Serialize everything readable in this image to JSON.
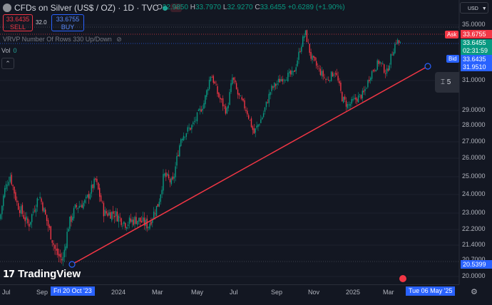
{
  "header": {
    "symbol_title": "CFDs on Silver (US$ / OZ) · 1D · TVC",
    "ohlc": {
      "o_label": "O",
      "o": "32.9850",
      "h_label": "H",
      "h": "33.7970",
      "l_label": "L",
      "l": "32.9270",
      "c_label": "C",
      "c": "33.6455",
      "change": "+0.6289 (+1.90%)"
    },
    "wave_icon": "≈"
  },
  "trade": {
    "sell_price": "33.6435",
    "sell_label": "SELL",
    "spread": "32.0",
    "buy_price": "33.6755",
    "buy_label": "BUY"
  },
  "indicators": {
    "vrvp_label": "VRVP Number Of Rows 330 Up/Down",
    "vol_label": "Vol",
    "vol_value": "0",
    "collapse_icon": "chevron-up-icon"
  },
  "currency": "USD",
  "price_axis": {
    "ticks": [
      "35.0000",
      "31.0000",
      "29.0000",
      "28.0000",
      "27.0000",
      "26.0000",
      "25.0000",
      "24.0000",
      "23.0000",
      "22.2000",
      "21.4000",
      "20.0000"
    ],
    "partial_tick": "20.7000",
    "ask_label": "Ask",
    "ask": "33.6755",
    "last": "33.6455",
    "countdown": "02:31:59",
    "bid_label": "Bid",
    "bid": "33.6435",
    "line_end": "31.9510",
    "line_start": "20.5399"
  },
  "time_axis": {
    "ticks": [
      "Jul",
      "Sep",
      "2024",
      "Mar",
      "May",
      "Jul",
      "Sep",
      "Nov",
      "2025",
      "Mar"
    ],
    "start_tag": "Fri 20 Oct '23",
    "end_tag": "Tue 06 May '25"
  },
  "tool_panel_text": "5",
  "brand": "TradingView",
  "colors": {
    "up": "#089981",
    "down": "#f23645",
    "trendline": "#f23645",
    "accent": "#2962ff",
    "background": "#131722"
  },
  "chart_data": {
    "type": "candlestick",
    "title": "CFDs on Silver (US$ / OZ) · 1D · TVC",
    "ylim": [
      19.9,
      35.4
    ],
    "x_range": [
      "2023-07",
      "2025-05"
    ],
    "close_path": [
      [
        0,
        22.7
      ],
      [
        6,
        24.2
      ],
      [
        14,
        25.1
      ],
      [
        24,
        23.5
      ],
      [
        40,
        22.4
      ],
      [
        55,
        24.0
      ],
      [
        65,
        22.7
      ],
      [
        78,
        21.1
      ],
      [
        88,
        20.7
      ],
      [
        96,
        22.4
      ],
      [
        106,
        23.3
      ],
      [
        120,
        23.6
      ],
      [
        134,
        24.8
      ],
      [
        146,
        23.0
      ],
      [
        160,
        23.0
      ],
      [
        176,
        22.5
      ],
      [
        192,
        22.7
      ],
      [
        208,
        22.4
      ],
      [
        222,
        23.5
      ],
      [
        230,
        25.1
      ],
      [
        242,
        24.6
      ],
      [
        254,
        27.3
      ],
      [
        270,
        28.0
      ],
      [
        286,
        29.5
      ],
      [
        296,
        31.5
      ],
      [
        306,
        30.0
      ],
      [
        318,
        28.9
      ],
      [
        326,
        31.2
      ],
      [
        334,
        30.0
      ],
      [
        346,
        29.0
      ],
      [
        356,
        27.5
      ],
      [
        368,
        28.6
      ],
      [
        380,
        30.4
      ],
      [
        396,
        31.2
      ],
      [
        412,
        31.5
      ],
      [
        422,
        33.5
      ],
      [
        428,
        34.5
      ],
      [
        436,
        32.7
      ],
      [
        448,
        31.7
      ],
      [
        458,
        31.0
      ],
      [
        470,
        31.7
      ],
      [
        480,
        29.8
      ],
      [
        488,
        29.3
      ],
      [
        500,
        29.8
      ],
      [
        510,
        30.1
      ],
      [
        520,
        31.5
      ],
      [
        532,
        32.4
      ],
      [
        542,
        31.5
      ],
      [
        550,
        33.0
      ],
      [
        556,
        33.9
      ],
      [
        562,
        33.6
      ]
    ],
    "trendline": {
      "from": [
        "2023-10-20",
        20.5399
      ],
      "to": [
        "2025-05-06",
        31.951
      ],
      "color": "#f23645"
    }
  }
}
